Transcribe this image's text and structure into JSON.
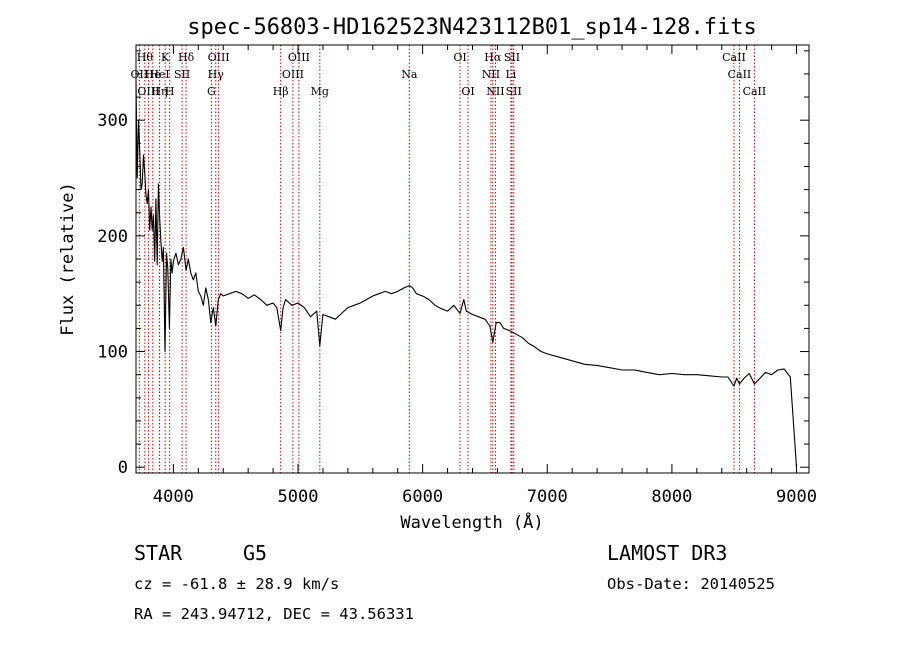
{
  "chart_data": {
    "type": "line",
    "title": "spec-56803-HD162523N423112B01_sp14-128.fits",
    "xlabel": "Wavelength (Å)",
    "ylabel": "Flux (relative)",
    "xlim": [
      3700,
      9100
    ],
    "ylim": [
      -5,
      365
    ],
    "x_ticks": [
      4000,
      5000,
      6000,
      7000,
      8000,
      9000
    ],
    "y_ticks": [
      0,
      100,
      200,
      300
    ],
    "series": [
      {
        "name": "flux",
        "x": [
          3700,
          3710,
          3720,
          3730,
          3740,
          3750,
          3760,
          3770,
          3780,
          3790,
          3800,
          3810,
          3820,
          3830,
          3840,
          3850,
          3860,
          3870,
          3880,
          3890,
          3900,
          3910,
          3920,
          3933,
          3945,
          3955,
          3968,
          3980,
          3990,
          4000,
          4020,
          4040,
          4060,
          4080,
          4102,
          4120,
          4140,
          4160,
          4180,
          4200,
          4220,
          4240,
          4260,
          4280,
          4300,
          4320,
          4340,
          4360,
          4380,
          4400,
          4450,
          4500,
          4550,
          4600,
          4650,
          4700,
          4750,
          4800,
          4830,
          4861,
          4880,
          4900,
          4950,
          5000,
          5050,
          5100,
          5150,
          5175,
          5200,
          5250,
          5300,
          5350,
          5400,
          5450,
          5500,
          5550,
          5600,
          5650,
          5700,
          5750,
          5800,
          5850,
          5893,
          5920,
          5950,
          6000,
          6050,
          6100,
          6150,
          6200,
          6250,
          6300,
          6330,
          6350,
          6400,
          6450,
          6500,
          6540,
          6563,
          6590,
          6620,
          6650,
          6700,
          6750,
          6800,
          6850,
          6900,
          6950,
          7000,
          7100,
          7200,
          7300,
          7400,
          7500,
          7600,
          7700,
          7800,
          7900,
          8000,
          8100,
          8200,
          8300,
          8400,
          8450,
          8498,
          8520,
          8542,
          8580,
          8620,
          8662,
          8700,
          8750,
          8800,
          8850,
          8900,
          8950,
          9000
        ],
        "y": [
          335,
          250,
          300,
          275,
          240,
          245,
          270,
          255,
          235,
          228,
          240,
          205,
          225,
          205,
          218,
          178,
          232,
          175,
          245,
          215,
          195,
          178,
          190,
          100,
          185,
          172,
          120,
          180,
          168,
          178,
          185,
          175,
          180,
          190,
          170,
          180,
          168,
          162,
          168,
          152,
          148,
          140,
          155,
          145,
          125,
          138,
          122,
          145,
          150,
          148,
          150,
          152,
          150,
          146,
          149,
          145,
          140,
          142,
          138,
          118,
          138,
          145,
          140,
          142,
          138,
          130,
          135,
          105,
          132,
          130,
          128,
          133,
          138,
          140,
          142,
          145,
          148,
          150,
          152,
          150,
          152,
          155,
          157,
          155,
          150,
          148,
          145,
          140,
          137,
          135,
          140,
          133,
          145,
          135,
          132,
          130,
          128,
          122,
          108,
          125,
          125,
          120,
          118,
          115,
          112,
          107,
          104,
          100,
          98,
          95,
          92,
          89,
          88,
          86,
          84,
          84,
          82,
          80,
          81,
          80,
          80,
          79,
          78,
          78,
          70,
          77,
          72,
          77,
          81,
          72,
          76,
          82,
          80,
          84,
          85,
          78,
          0
        ]
      }
    ],
    "line_markers": [
      {
        "label": "OII",
        "wl": 3727,
        "row": 2
      },
      {
        "label": "Hθ",
        "wl": 3771,
        "row": 1
      },
      {
        "label": "OIII",
        "wl": 3800,
        "row": 3
      },
      {
        "label": "He",
        "wl": 3835,
        "row": 2
      },
      {
        "label": "Hη",
        "wl": 3889,
        "row": 3
      },
      {
        "label": "K",
        "wl": 3934,
        "row": 1
      },
      {
        "label": "HeI",
        "wl": 3889,
        "row": 2
      },
      {
        "label": "H",
        "wl": 3970,
        "row": 3
      },
      {
        "label": "SII",
        "wl": 4070,
        "row": 2
      },
      {
        "label": "Hδ",
        "wl": 4102,
        "row": 1
      },
      {
        "label": "OIII",
        "wl": 4363,
        "row": 1
      },
      {
        "label": "Hγ",
        "wl": 4340,
        "row": 2
      },
      {
        "label": "G",
        "wl": 4305,
        "row": 3
      },
      {
        "label": "Hβ",
        "wl": 4861,
        "row": 3
      },
      {
        "label": "OIII",
        "wl": 4959,
        "row": 2
      },
      {
        "label": "OIII",
        "wl": 5007,
        "row": 1
      },
      {
        "label": "Mg",
        "wl": 5175,
        "row": 3
      },
      {
        "label": "Na",
        "wl": 5893,
        "row": 2
      },
      {
        "label": "OI",
        "wl": 6300,
        "row": 1
      },
      {
        "label": "OI",
        "wl": 6364,
        "row": 3
      },
      {
        "label": "NII",
        "wl": 6548,
        "row": 2
      },
      {
        "label": "Hα",
        "wl": 6563,
        "row": 1
      },
      {
        "label": "NII",
        "wl": 6584,
        "row": 3
      },
      {
        "label": "Li",
        "wl": 6708,
        "row": 2
      },
      {
        "label": "SII",
        "wl": 6717,
        "row": 1
      },
      {
        "label": "SII",
        "wl": 6731,
        "row": 3
      },
      {
        "label": "CaII",
        "wl": 8498,
        "row": 1
      },
      {
        "label": "CaII",
        "wl": 8542,
        "row": 2
      },
      {
        "label": "CaII",
        "wl": 8662,
        "row": 3
      }
    ]
  },
  "info": {
    "object_class": "STAR",
    "subclass": "G5",
    "survey": "LAMOST DR3",
    "redshift": "cz = -61.8 ± 28.9 km/s",
    "obs_date": "Obs-Date: 20140525",
    "coords": "RA = 243.94712, DEC =  43.56331"
  },
  "colors": {
    "marker": "#cc0000",
    "ink": "#000000"
  }
}
